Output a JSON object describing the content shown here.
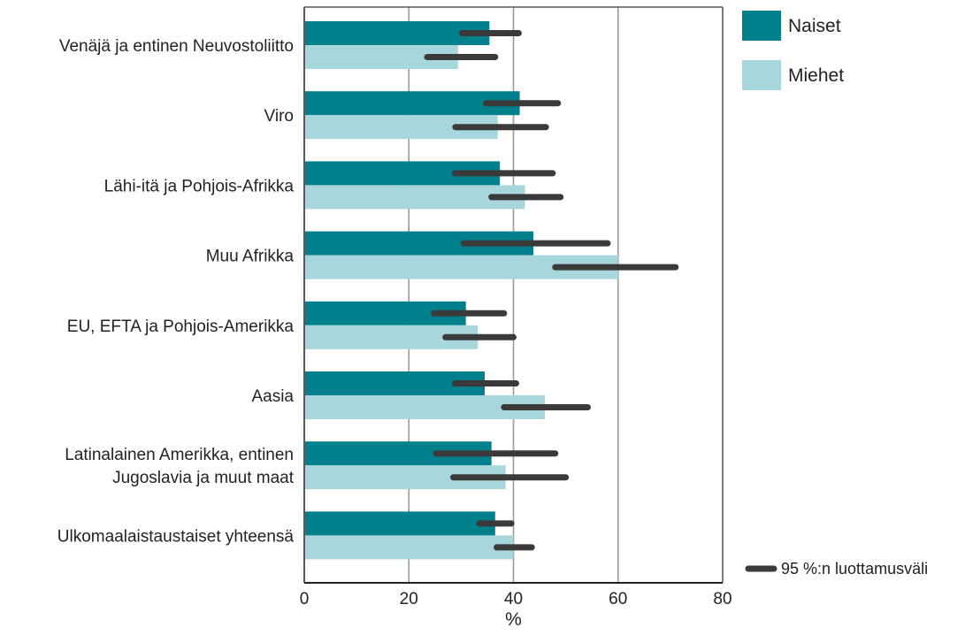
{
  "chart_data": {
    "type": "bar",
    "orientation": "horizontal",
    "categories": [
      [
        "Venäjä ja entinen Neuvostoliitto"
      ],
      [
        "Viro"
      ],
      [
        "Lähi-itä ja Pohjois-Afrikka"
      ],
      [
        "Muu Afrikka"
      ],
      [
        "EU, EFTA ja Pohjois-Amerikka"
      ],
      [
        "Aasia"
      ],
      [
        "Latinalainen Amerikka, entinen",
        "Jugoslavia ja muut maat"
      ],
      [
        "Ulkomaalaistaustaiset yhteensä"
      ]
    ],
    "series": [
      {
        "name": "Naiset",
        "color": "#007f8c",
        "values": [
          35.4,
          41.2,
          37.4,
          43.8,
          30.9,
          34.5,
          35.8,
          36.5
        ],
        "ci": [
          [
            30.2,
            41.0
          ],
          [
            34.8,
            48.5
          ],
          [
            28.8,
            47.5
          ],
          [
            30.5,
            58.0
          ],
          [
            24.8,
            38.2
          ],
          [
            28.8,
            40.5
          ],
          [
            25.2,
            48.0
          ],
          [
            33.5,
            39.6
          ]
        ]
      },
      {
        "name": "Miehet",
        "color": "#a7d6dc",
        "values": [
          29.4,
          37.0,
          42.2,
          60.0,
          33.2,
          46.0,
          38.5,
          40.0
        ],
        "ci": [
          [
            23.5,
            36.5
          ],
          [
            28.9,
            46.2
          ],
          [
            35.8,
            49.0
          ],
          [
            48.0,
            71.0
          ],
          [
            27.0,
            40.0
          ],
          [
            38.2,
            54.2
          ],
          [
            28.5,
            50.0
          ],
          [
            36.8,
            43.5
          ]
        ]
      }
    ],
    "xlabel": "%",
    "xlim": [
      0,
      80
    ],
    "xticks": [
      0,
      20,
      40,
      60,
      80
    ],
    "grid": "vertical gridlines at 20, 40, 60",
    "legend": {
      "placement": "top-right",
      "entries": [
        "Naiset",
        "Miehet"
      ],
      "ci_label": "95 %:n luottamusväli",
      "ci_placement": "bottom-right"
    },
    "ci_color": "#3a3a3a"
  }
}
